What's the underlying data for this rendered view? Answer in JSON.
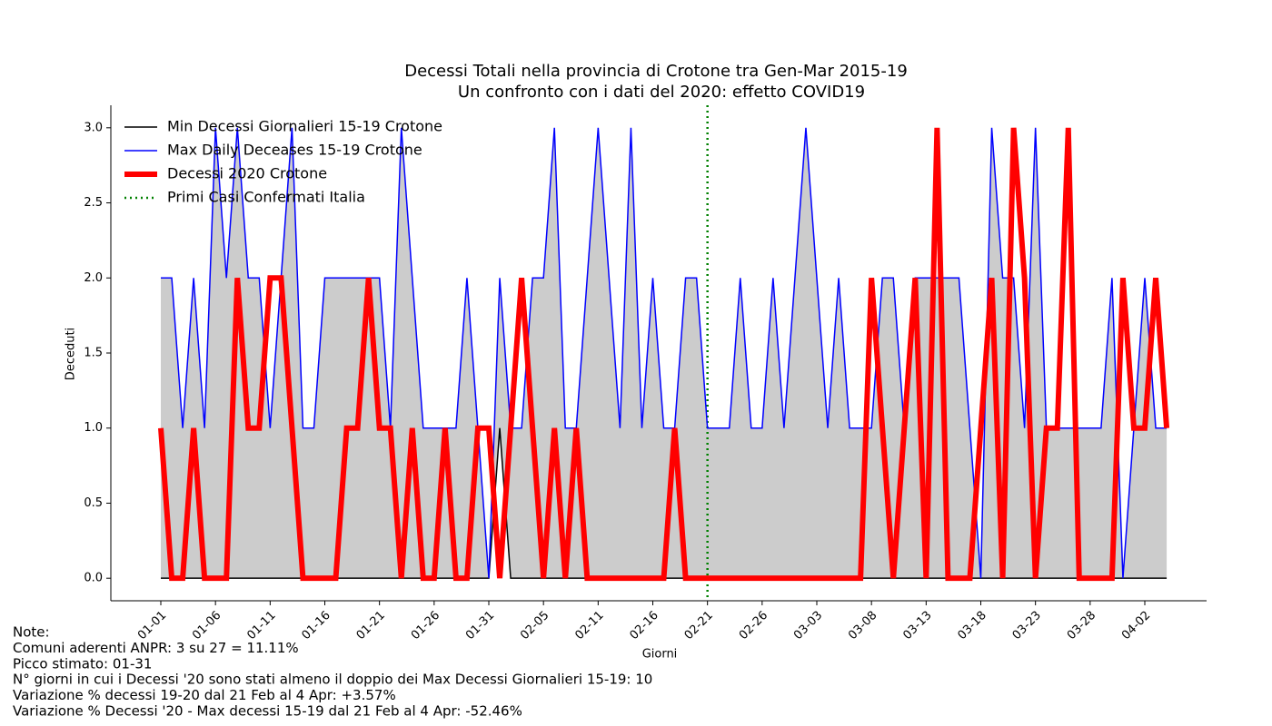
{
  "chart_data": {
    "type": "line",
    "title": "Decessi Totali nella provincia di Crotone tra Gen-Mar 2015-19",
    "subtitle": "Un confronto con i dati del 2020: effetto COVID19",
    "x_label": "Giorni",
    "y_label": "Deceduti",
    "categories": [
      "01-01",
      null,
      null,
      null,
      null,
      "01-06",
      null,
      null,
      null,
      null,
      "01-11",
      null,
      null,
      null,
      null,
      "01-16",
      null,
      null,
      null,
      null,
      "01-21",
      null,
      null,
      null,
      null,
      "01-26",
      null,
      null,
      null,
      null,
      "01-31",
      null,
      null,
      null,
      null,
      "02-05",
      null,
      null,
      null,
      null,
      "02-11",
      null,
      null,
      null,
      null,
      "02-16",
      null,
      null,
      null,
      null,
      "02-21",
      null,
      null,
      null,
      null,
      "02-26",
      null,
      null,
      null,
      null,
      "03-03",
      null,
      null,
      null,
      null,
      "03-08",
      null,
      null,
      null,
      null,
      "03-13",
      null,
      null,
      null,
      null,
      "03-18",
      null,
      null,
      null,
      null,
      "03-23",
      null,
      null,
      null,
      null,
      "03-28",
      null,
      null,
      null,
      null,
      "04-02",
      null,
      null
    ],
    "series": [
      {
        "name": "Min Decessi Giornalieri 15-19 Crotone",
        "color": "#000000",
        "linewidth": 1.5,
        "values": [
          0,
          0,
          0,
          0,
          0,
          0,
          0,
          0,
          0,
          0,
          0,
          0,
          0,
          0,
          0,
          0,
          0,
          0,
          0,
          0,
          0,
          0,
          0,
          0,
          0,
          0,
          0,
          0,
          0,
          0,
          0,
          1,
          0,
          0,
          0,
          0,
          0,
          0,
          0,
          0,
          0,
          0,
          0,
          0,
          0,
          0,
          0,
          0,
          0,
          0,
          0,
          0,
          0,
          0,
          0,
          0,
          0,
          0,
          0,
          0,
          0,
          0,
          0,
          0,
          0,
          0,
          0,
          0,
          0,
          0,
          0,
          0,
          0,
          0,
          0,
          0,
          0,
          0,
          0,
          0,
          0,
          0,
          0,
          0,
          0,
          0,
          0,
          0,
          0,
          0,
          0,
          0,
          0
        ]
      },
      {
        "name": "Max Daily Deceases 15-19 Crotone",
        "color": "#0000ff",
        "linewidth": 1.5,
        "values": [
          2,
          2,
          1,
          2,
          1,
          3,
          2,
          3,
          2,
          2,
          1,
          2,
          3,
          1,
          1,
          2,
          2,
          2,
          2,
          2,
          2,
          1,
          3,
          2,
          1,
          1,
          1,
          1,
          2,
          1,
          0,
          2,
          1,
          1,
          2,
          2,
          3,
          1,
          1,
          2,
          3,
          2,
          1,
          3,
          1,
          2,
          1,
          1,
          2,
          2,
          1,
          1,
          1,
          2,
          1,
          1,
          2,
          1,
          2,
          3,
          2,
          1,
          2,
          1,
          1,
          1,
          2,
          2,
          1,
          2,
          2,
          2,
          2,
          2,
          1,
          0,
          3,
          2,
          2,
          1,
          3,
          1,
          1,
          1,
          1,
          1,
          1,
          2,
          0,
          1,
          2,
          1,
          1
        ]
      },
      {
        "name": "Decessi 2020 Crotone",
        "color": "#ff0000",
        "linewidth": 6,
        "values": [
          1,
          0,
          0,
          1,
          0,
          0,
          0,
          2,
          1,
          1,
          2,
          2,
          1,
          0,
          0,
          0,
          0,
          1,
          1,
          2,
          1,
          1,
          0,
          1,
          0,
          0,
          1,
          0,
          0,
          1,
          1,
          0,
          1,
          2,
          1,
          0,
          1,
          0,
          1,
          0,
          0,
          0,
          0,
          0,
          0,
          0,
          0,
          1,
          0,
          0,
          0,
          0,
          0,
          0,
          0,
          0,
          0,
          0,
          0,
          0,
          0,
          0,
          0,
          0,
          0,
          2,
          1,
          0,
          1,
          2,
          0,
          3,
          0,
          0,
          0,
          1,
          2,
          0,
          3,
          2,
          0,
          1,
          1,
          3,
          0,
          0,
          0,
          0,
          2,
          1,
          1,
          2,
          1
        ]
      }
    ],
    "range_fill_color": "#cccccc",
    "vline": {
      "name": "Primi Casi Confermati Italia",
      "color": "#008000",
      "category": "02-21"
    },
    "ylim": [
      -0.15,
      3.15
    ],
    "yticks": [
      {
        "value": 0,
        "label": "0.0"
      },
      {
        "value": 0.5,
        "label": "0.5"
      },
      {
        "value": 1,
        "label": "1.0"
      },
      {
        "value": 1.5,
        "label": "1.5"
      },
      {
        "value": 2,
        "label": "2.0"
      },
      {
        "value": 2.5,
        "label": "2.5"
      },
      {
        "value": 3,
        "label": "3.0"
      }
    ],
    "legend": "upper left",
    "notes": [
      "Note:",
      "Comuni aderenti ANPR: 3 su 27 = 11.11%",
      "Picco stimato: 01-31",
      "N° giorni in cui i Decessi '20 sono stati almeno il doppio dei Max Decessi Giornalieri 15-19: 10",
      "Variazione % decessi 19-20 dal 21 Feb al 4 Apr:  +3.57%",
      "Variazione % Decessi '20 - Max decessi 15-19 dal 21 Feb al 4 Apr: -52.46%"
    ]
  }
}
